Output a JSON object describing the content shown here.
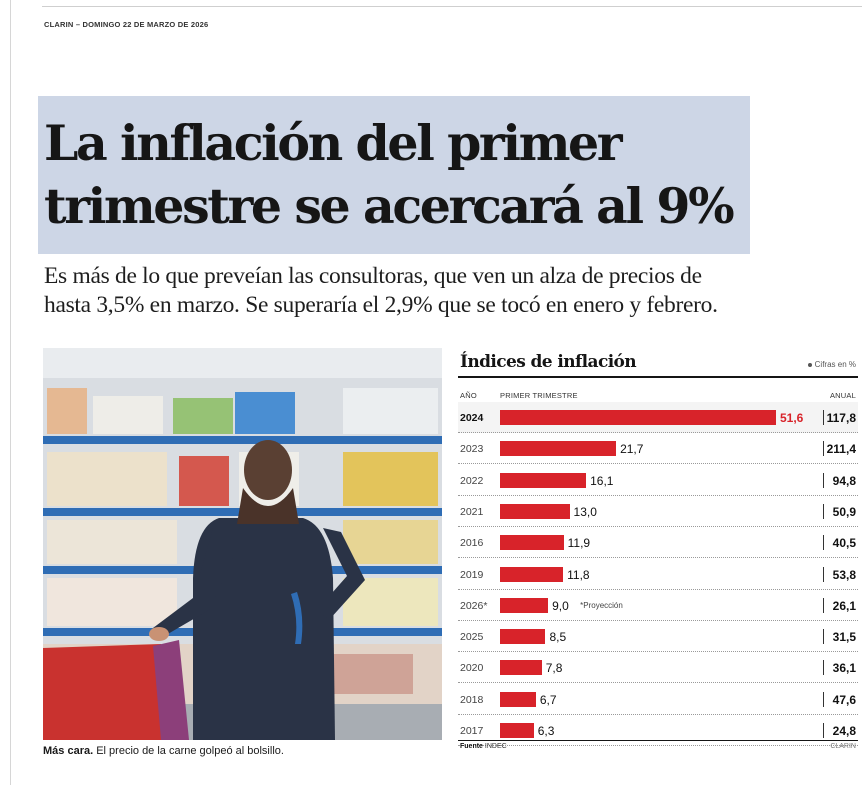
{
  "dateline": "CLARIN – DOMINGO 22 DE MARZO DE 2026",
  "headline": {
    "line1": "La inflación del primer",
    "line2": "trimestre se acercará al 9%"
  },
  "subhead": {
    "line1": "Es más de lo que preveían las consultoras, que ven un alza de precios de",
    "line2": "hasta 3,5% en marzo. Se superaría el 2,9% que se tocó en enero y febrero."
  },
  "caption": {
    "lead": "Más cara.",
    "text": " El precio de la carne golpeó al bolsillo."
  },
  "chart_data": {
    "type": "bar",
    "title": "Índices de inflación",
    "units_note": "Cifras en %",
    "col_year": "AÑO",
    "col_quarter": "PRIMER TRIMESTRE",
    "col_annual": "ANUAL",
    "xlim": [
      0,
      51.6
    ],
    "categories": [
      "2024",
      "2023",
      "2022",
      "2021",
      "2016",
      "2019",
      "2026*",
      "2025",
      "2020",
      "2018",
      "2017"
    ],
    "labels": [
      "51,6",
      "21,7",
      "16,1",
      "13,0",
      "11,9",
      "11,8",
      "9,0",
      "8,5",
      "7,8",
      "6,7",
      "6,3"
    ],
    "values": [
      51.6,
      21.7,
      16.1,
      13.0,
      11.9,
      11.8,
      9.0,
      8.5,
      7.8,
      6.7,
      6.3
    ],
    "annual": [
      "117,8",
      "211,4",
      "94,8",
      "50,9",
      "40,5",
      "53,8",
      "26,1",
      "31,5",
      "36,1",
      "47,6",
      "24,8"
    ],
    "highlight": "2024",
    "projection_note": "*Proyección",
    "source_label": "Fuente",
    "source": "INDEC",
    "brand": "CLARIN",
    "bar_color": "#d8232a"
  }
}
